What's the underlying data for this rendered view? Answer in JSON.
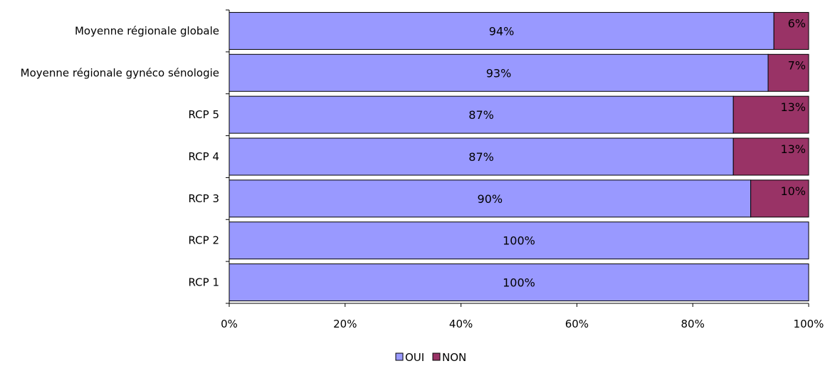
{
  "chart_data": {
    "type": "bar",
    "orientation": "horizontal",
    "stacked": true,
    "categories": [
      "Moyenne régionale globale",
      "Moyenne régionale gynéco sénologie",
      "RCP 5",
      "RCP 4",
      "RCP 3",
      "RCP 2",
      "RCP 1"
    ],
    "series": [
      {
        "name": "OUI",
        "color": "#9999ff",
        "values": [
          94,
          93,
          87,
          87,
          90,
          100,
          100
        ],
        "labels": [
          "94%",
          "93%",
          "87%",
          "87%",
          "90%",
          "100%",
          "100%"
        ]
      },
      {
        "name": "NON",
        "color": "#993366",
        "values": [
          6,
          7,
          13,
          13,
          10,
          0,
          0
        ],
        "labels": [
          "6%",
          "7%",
          "13%",
          "13%",
          "10%",
          "",
          ""
        ]
      }
    ],
    "x_ticks": [
      "0%",
      "20%",
      "40%",
      "60%",
      "80%",
      "100%"
    ],
    "xlim": [
      0,
      100
    ],
    "title": "",
    "xlabel": "",
    "ylabel": "",
    "grid": false,
    "legend_position": "bottom"
  }
}
